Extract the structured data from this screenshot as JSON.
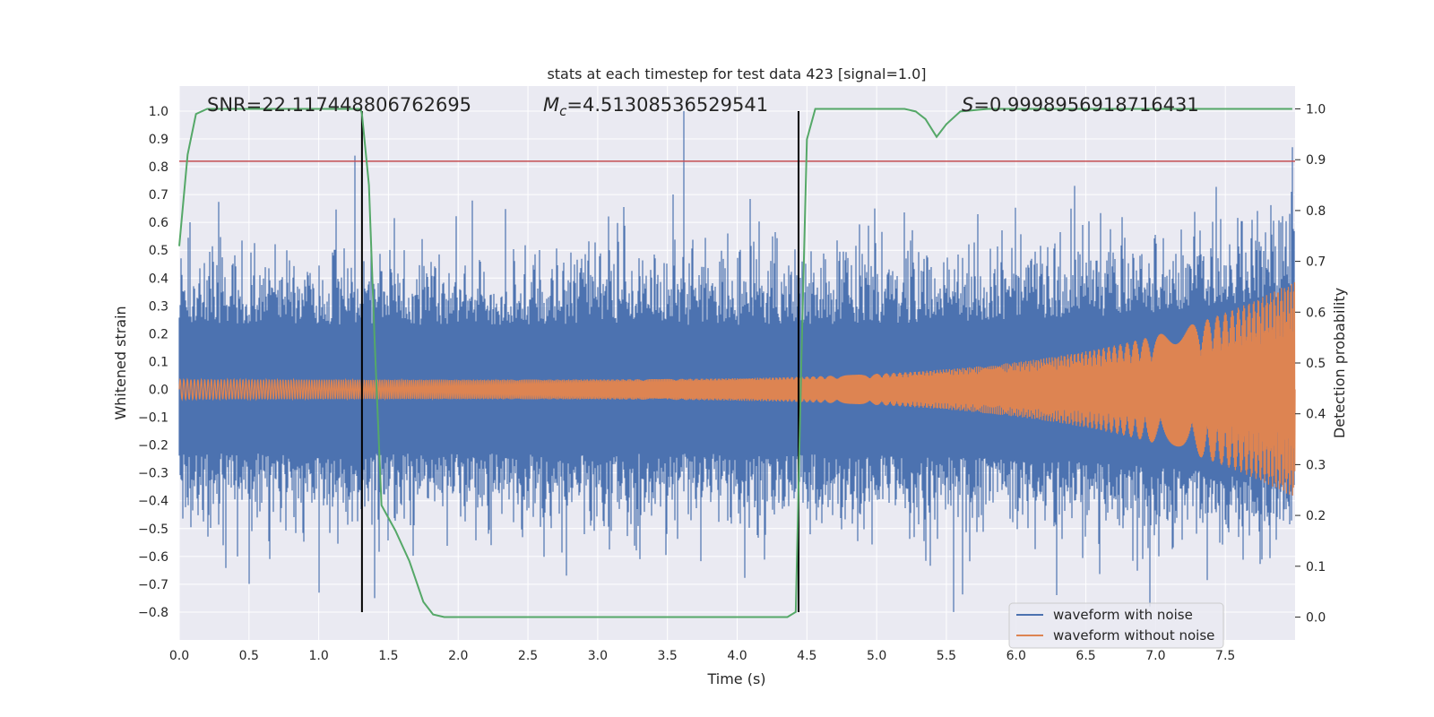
{
  "chart_data": {
    "type": "line",
    "title": "stats at each timestep for test data 423 [signal=1.0]",
    "xlabel": "Time (s)",
    "ylabel_left": "Whitened strain",
    "ylabel_right": "Detection probability",
    "xlim": [
      0.0,
      8.0
    ],
    "ylim_left": [
      -0.9,
      1.09
    ],
    "ylim_right": [
      -0.045,
      1.045
    ],
    "x_ticks": [
      "0.0",
      "0.5",
      "1.0",
      "1.5",
      "2.0",
      "2.5",
      "3.0",
      "3.5",
      "4.0",
      "4.5",
      "5.0",
      "5.5",
      "6.0",
      "6.5",
      "7.0",
      "7.5"
    ],
    "y_ticks_left": [
      "-0.8",
      "-0.7",
      "-0.6",
      "-0.5",
      "-0.4",
      "-0.3",
      "-0.2",
      "-0.1",
      "0.0",
      "0.1",
      "0.2",
      "0.3",
      "0.4",
      "0.5",
      "0.6",
      "0.7",
      "0.8",
      "0.9",
      "1.0"
    ],
    "y_ticks_right": [
      "0.0",
      "0.1",
      "0.2",
      "0.3",
      "0.4",
      "0.5",
      "0.6",
      "0.7",
      "0.8",
      "0.9",
      "1.0"
    ],
    "grid": true,
    "legend_position": "lower-right",
    "annotations": {
      "snr": "SNR=22.117448806762695",
      "mc_symbol": "M",
      "mc_sub": "c",
      "mc_value": "=4.51308536529541",
      "s_symbol": "S",
      "s_value": "=0.9998956918716431"
    },
    "threshold": {
      "value": 0.82,
      "color": "#c44e52"
    },
    "vertical_markers": [
      1.31,
      4.44
    ],
    "series": [
      {
        "name": "waveform with noise",
        "color": "#4c72b0",
        "kind": "noisy strain",
        "peak_values": [
          0.84,
          1.0,
          0.87,
          -0.8,
          -0.75,
          -0.73
        ]
      },
      {
        "name": "waveform without noise",
        "color": "#dd8452",
        "kind": "chirp",
        "start_amplitude": 0.035,
        "end_amplitude": 0.39,
        "end_time": 8.0
      },
      {
        "name": "Detection probability",
        "color": "#55a868",
        "axis": "right",
        "x": [
          0.0,
          0.06,
          0.12,
          0.2,
          0.4,
          0.8,
          1.0,
          1.2,
          1.3,
          1.31,
          1.36,
          1.4,
          1.45,
          1.55,
          1.65,
          1.75,
          1.82,
          1.9,
          2.0,
          2.5,
          3.0,
          3.5,
          4.0,
          4.25,
          4.36,
          4.42,
          4.46,
          4.5,
          4.56,
          4.8,
          5.0,
          5.2,
          5.28,
          5.35,
          5.43,
          5.5,
          5.6,
          5.8,
          6.5,
          7.0,
          7.5,
          7.98
        ],
        "y": [
          0.73,
          0.91,
          0.99,
          1.0,
          1.0,
          1.0,
          1.0,
          1.0,
          1.0,
          0.99,
          0.85,
          0.55,
          0.22,
          0.17,
          0.11,
          0.03,
          0.005,
          0.0,
          0.0,
          0.0,
          0.0,
          0.0,
          0.0,
          0.0,
          0.0,
          0.01,
          0.5,
          0.94,
          1.0,
          1.0,
          1.0,
          1.0,
          0.995,
          0.98,
          0.945,
          0.97,
          0.995,
          1.0,
          1.0,
          1.0,
          1.0,
          1.0
        ]
      }
    ]
  }
}
